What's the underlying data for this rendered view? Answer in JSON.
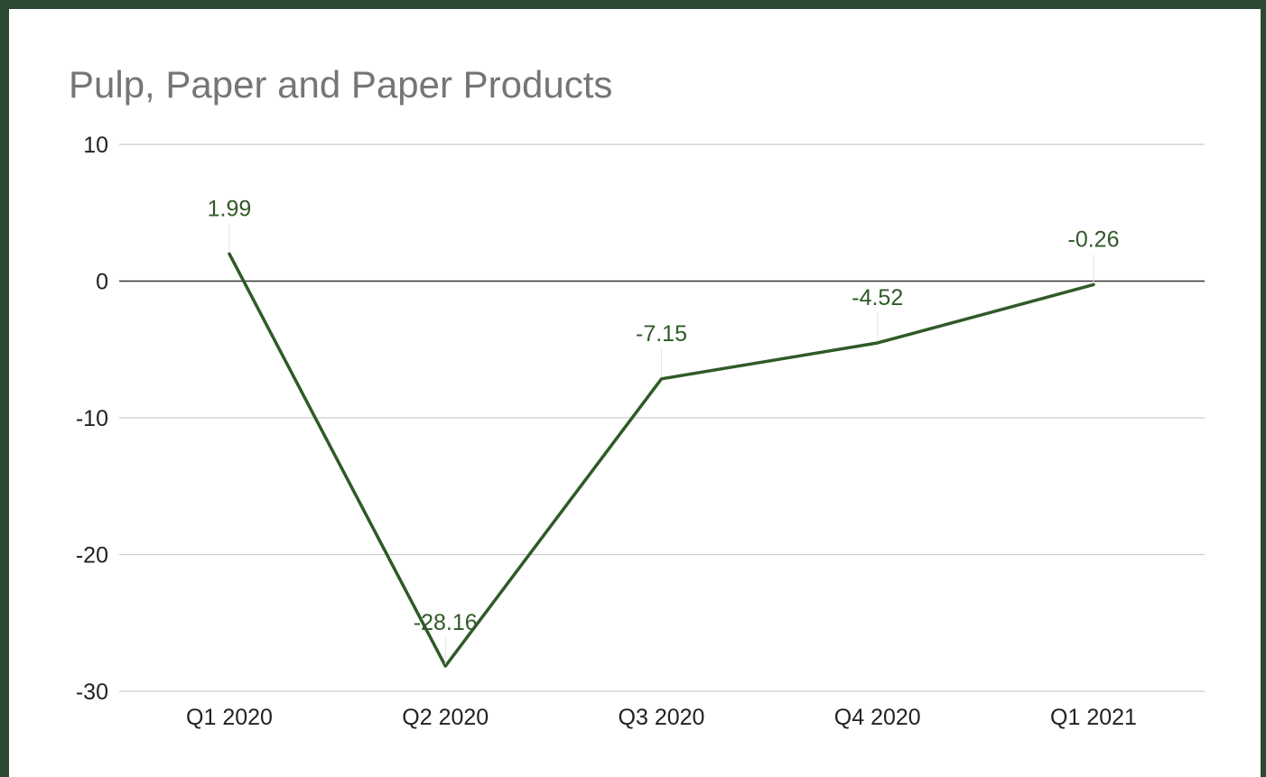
{
  "chart_data": {
    "type": "line",
    "title": "Pulp, Paper and Paper Products",
    "xlabel": "",
    "ylabel": "",
    "categories": [
      "Q1 2020",
      "Q2 2020",
      "Q3 2020",
      "Q4 2020",
      "Q1 2021"
    ],
    "values": [
      1.99,
      -28.16,
      -7.15,
      -4.52,
      -0.26
    ],
    "data_labels": [
      "1.99",
      "-28.16",
      "-7.15",
      "-4.52",
      "-0.26"
    ],
    "ylim": [
      -30,
      10
    ],
    "yticks": [
      "10",
      "0",
      "-10",
      "-20",
      "-30"
    ],
    "grid": true,
    "legend": "none",
    "colors": {
      "line": "#2f5a27",
      "grid": "#cccccc",
      "zero_line": "#333333",
      "frame": "#2c4a33"
    }
  }
}
